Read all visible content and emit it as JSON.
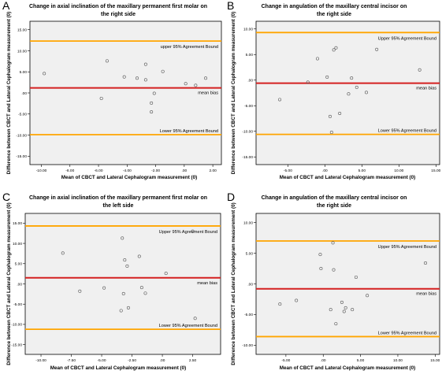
{
  "chart_data": [
    {
      "type": "scatter",
      "panel_letter": "A",
      "title_lines": [
        "Change in axial inclination of the maxillary permanent first molar on",
        "the right side"
      ],
      "xlabel": "Mean of CBCT and Lateral Cephalogram measurement (0)",
      "ylabel": "Difference between CBCT and Lateral Cephalogram measurement (0)",
      "xlim": [
        -10.8,
        2.6
      ],
      "ylim": [
        -17.0,
        17.0
      ],
      "xticks": [
        -10.0,
        -8.0,
        -6.0,
        -4.0,
        -2.0,
        0.0,
        2.0
      ],
      "xtick_labels": [
        "-10.00",
        "-8.00",
        "-6.00",
        "-4.00",
        "-2.00",
        ".00",
        "2.00"
      ],
      "yticks": [
        -15.0,
        -10.0,
        -5.0,
        0.0,
        5.0,
        10.0,
        15.0
      ],
      "ytick_labels": [
        "-15.00",
        "-10.00",
        "-5.00",
        ".00",
        "5.00",
        "10.00",
        "15.00"
      ],
      "grid": false,
      "lines": [
        {
          "label": "upper 95% Agreement Bound",
          "value": 12.3,
          "color": "#ffa500"
        },
        {
          "label": "mean bias",
          "value": 1.2,
          "color": "#d42020"
        },
        {
          "label": "Lower 95% Agreement Bound",
          "value": -9.9,
          "color": "#ffa500"
        }
      ],
      "points": {
        "x": [
          -9.8,
          -5.8,
          -5.4,
          -4.2,
          -3.3,
          -2.7,
          -2.7,
          -2.3,
          -2.1,
          -2.3,
          -1.5,
          0.1,
          0.8,
          1.5
        ],
        "y": [
          4.6,
          -1.3,
          7.6,
          3.8,
          3.5,
          6.8,
          3.1,
          -4.5,
          -0.1,
          -2.4,
          5.1,
          2.2,
          1.8,
          3.5
        ]
      }
    },
    {
      "type": "scatter",
      "panel_letter": "B",
      "title_lines": [
        "Change in angulation of the maxillary central incisor on",
        "the right side"
      ],
      "xlabel": "Mean of CBCT and Lateral Cephalogram measurement (0)",
      "ylabel": "Difference between CBCT and Lateral Cephalogram measurement (0)",
      "xlim": [
        -9.3,
        15.5
      ],
      "ylim": [
        -16.5,
        11.5
      ],
      "xticks": [
        -5.0,
        0.0,
        5.0,
        10.0,
        15.0
      ],
      "xtick_labels": [
        "-5.00",
        ".00",
        "5.00",
        "10.00",
        "15.00"
      ],
      "yticks": [
        -15.0,
        -10.0,
        -5.0,
        0.0,
        5.0,
        10.0
      ],
      "ytick_labels": [
        "-15.00",
        "-10.00",
        "-5.00",
        ".00",
        "5.00",
        "10.00"
      ],
      "grid": false,
      "lines": [
        {
          "label": "Upper 95% Agreement Bound",
          "value": 9.3,
          "color": "#ffa500"
        },
        {
          "label": "mean bias",
          "value": -0.6,
          "color": "#d42020"
        },
        {
          "label": "Lower 95% Agreement Bound",
          "value": -10.6,
          "color": "#ffa500"
        }
      ],
      "points": {
        "x": [
          -6.1,
          -2.3,
          -1.0,
          0.3,
          1.2,
          1.5,
          0.7,
          2.0,
          0.9,
          3.2,
          3.6,
          4.3,
          5.6,
          7.0,
          12.8
        ],
        "y": [
          -3.8,
          -0.4,
          4.2,
          0.6,
          5.9,
          6.3,
          -7.1,
          -6.5,
          -10.2,
          -2.7,
          0.4,
          -1.4,
          -2.4,
          6.0,
          2.0
        ]
      }
    },
    {
      "type": "scatter",
      "panel_letter": "C",
      "title_lines": [
        "Change in axial inclination of the maxillary permanent first molar on",
        "the left side"
      ],
      "xlabel": "Mean of CBCT and Lateral Cephalogram measurement (0)",
      "ylabel": "Difference between CBCT and Lateral Cephalogram measurement (0)",
      "xlim": [
        -11.3,
        4.8
      ],
      "ylim": [
        -17.4,
        17.4
      ],
      "xticks": [
        -10.0,
        -7.5,
        -5.0,
        -2.5,
        0.0,
        2.5
      ],
      "xtick_labels": [
        "-10.00",
        "-7.50",
        "-5.00",
        "-2.50",
        ".00",
        "2.50"
      ],
      "yticks": [
        -15.0,
        -10.0,
        -5.0,
        0.0,
        5.0,
        10.0,
        15.0
      ],
      "ytick_labels": [
        "-15.00",
        "-10.00",
        "-5.00",
        ".00",
        "5.00",
        "10.00",
        "15.00"
      ],
      "grid": false,
      "lines": [
        {
          "label": "Upper 95% Agreement Bound",
          "value": 14.3,
          "color": "#ffa500"
        },
        {
          "label": "mean bias",
          "value": 1.5,
          "color": "#d42020"
        },
        {
          "label": "Lower 95% Agreement Bound",
          "value": -11.2,
          "color": "#ffa500"
        }
      ],
      "points": {
        "x": [
          -8.2,
          -6.8,
          -4.8,
          -3.3,
          -3.1,
          -2.9,
          -2.8,
          -3.2,
          -3.4,
          -1.9,
          -1.7,
          -1.4,
          0.3,
          2.5,
          2.7
        ],
        "y": [
          7.6,
          -1.8,
          -1.0,
          11.3,
          5.9,
          4.4,
          -5.9,
          -2.4,
          -6.6,
          6.8,
          -0.9,
          -2.3,
          2.6,
          13.0,
          -8.5
        ]
      }
    },
    {
      "type": "scatter",
      "panel_letter": "D",
      "title_lines": [
        "Change in angulation of the maxillary central incisor on",
        "the right side"
      ],
      "xlabel": "Mean of CBCT and Lateral Cephalogram measurement (0)",
      "ylabel": "Difference between CBCT and Lateral Cephalogram measurement (0)",
      "xlim": [
        -9.0,
        15.6
      ],
      "ylim": [
        -11.5,
        11.5
      ],
      "xticks": [
        -5.0,
        0.0,
        5.0,
        10.0,
        15.0
      ],
      "xtick_labels": [
        "-5.00",
        ".00",
        "5.00",
        "10.00",
        "15.00"
      ],
      "yticks": [
        -10.0,
        -5.0,
        0.0,
        5.0,
        10.0
      ],
      "ytick_labels": [
        "-10.00",
        "-5.00",
        ".00",
        "5.00",
        "10.00"
      ],
      "grid": false,
      "lines": [
        {
          "label": "Upper 95% Agreement Bound",
          "value": 7.0,
          "color": "#ffa500"
        },
        {
          "label": "mean bias",
          "value": -0.8,
          "color": "#d42020"
        },
        {
          "label": "Lower 95% Agreement Bound",
          "value": -8.6,
          "color": "#ffa500"
        }
      ],
      "points": {
        "x": [
          -5.8,
          -3.6,
          -0.4,
          -0.3,
          1.3,
          1.4,
          1.0,
          1.7,
          2.5,
          2.8,
          3.0,
          3.9,
          4.4,
          5.9,
          13.7
        ],
        "y": [
          -3.3,
          -2.7,
          4.8,
          2.5,
          6.7,
          2.3,
          -4.2,
          -6.5,
          -3.0,
          -4.5,
          -3.9,
          -4.2,
          1.1,
          -1.9,
          3.4
        ]
      }
    }
  ],
  "colors": {
    "plot_background": "#f0f0f0",
    "frame": "#000000",
    "marker_edge": "#555555",
    "agreement_bound": "#ffa500",
    "mean_bias": "#d42020"
  }
}
